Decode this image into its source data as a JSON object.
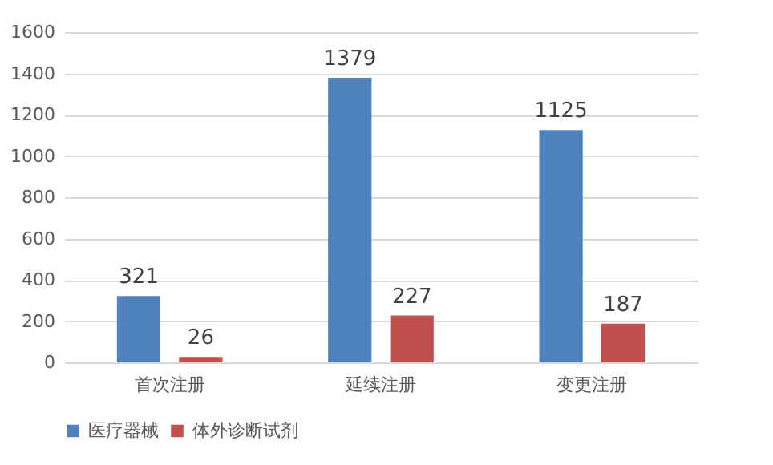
{
  "chart_data": {
    "type": "bar",
    "categories": [
      "首次注册",
      "延续注册",
      "变更注册"
    ],
    "series": [
      {
        "name": "医疗器械",
        "color": "#4f81bd",
        "values": [
          321,
          1379,
          1125
        ]
      },
      {
        "name": "体外诊断试剂",
        "color": "#c0504d",
        "values": [
          26,
          227,
          187
        ]
      }
    ],
    "ylim": [
      0,
      1600
    ],
    "yticks": [
      0,
      200,
      400,
      600,
      800,
      1000,
      1200,
      1400,
      1600
    ],
    "grid": "y",
    "legend": "bottom",
    "data_labels": true
  }
}
